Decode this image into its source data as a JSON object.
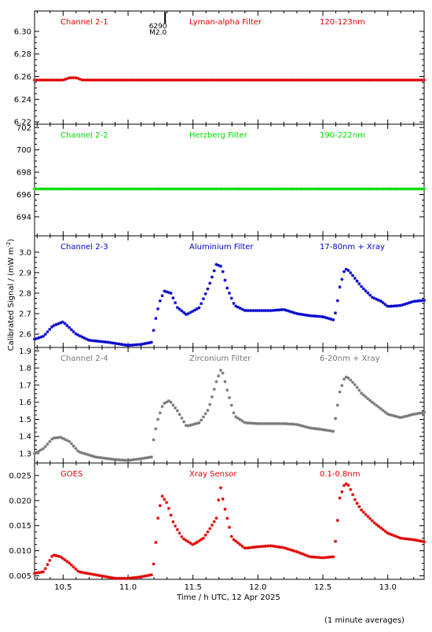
{
  "figure": {
    "ylabel": "Calibrated Signal / (mW m",
    "ylabel_sup": "-2",
    "ylabel_close": ")",
    "xlabel": "Time / h UTC, 12 Apr 2025",
    "footnote": "(1 minute averages)",
    "x_ticks": [
      10.5,
      11.0,
      11.5,
      12.0,
      12.5,
      13.0
    ],
    "x_tick_labels": [
      "10.5",
      "11.0",
      "11.5",
      "12.0",
      "12.5",
      "13.0"
    ]
  },
  "chart_data": [
    {
      "type": "scatter",
      "channel": "Channel 2-1",
      "filter": "Lyman-alpha Filter",
      "band": "120-123nm",
      "color": "#e00000",
      "xlim": [
        10.28,
        13.28
      ],
      "ylim": [
        6.218,
        6.318
      ],
      "y_ticks": [
        6.22,
        6.24,
        6.26,
        6.28,
        6.3
      ],
      "y_tick_labels": [
        "6.22",
        "6.24",
        "6.26",
        "6.28",
        "6.30"
      ],
      "annotation": {
        "x": 11.285,
        "lines": [
          "6290",
          "M2.0"
        ]
      },
      "x": [
        10.28,
        10.5,
        10.55,
        10.6,
        10.65,
        11.0,
        12.0,
        13.28
      ],
      "y": [
        6.257,
        6.257,
        6.259,
        6.259,
        6.257,
        6.257,
        6.257,
        6.257
      ]
    },
    {
      "type": "scatter",
      "channel": "Channel 2-2",
      "filter": "Herzberg Filter",
      "band": "190-222nm",
      "color": "#00dd00",
      "xlim": [
        10.28,
        13.28
      ],
      "ylim": [
        692.3,
        702.3
      ],
      "y_ticks": [
        694,
        696,
        698,
        700,
        702
      ],
      "y_tick_labels": [
        "694",
        "696",
        "698",
        "700",
        "702"
      ],
      "x": [
        10.28,
        11.0,
        12.0,
        13.28
      ],
      "y": [
        696.5,
        696.5,
        696.5,
        696.5
      ]
    },
    {
      "type": "scatter",
      "channel": "Channel 2-3",
      "filter": "Aluminium Filter",
      "band": "17-80nm + Xray",
      "color": "#0000cc",
      "xlim": [
        10.28,
        13.28
      ],
      "ylim": [
        2.535,
        3.08
      ],
      "y_ticks": [
        2.6,
        2.7,
        2.8,
        2.9,
        3.0
      ],
      "y_tick_labels": [
        "2.6",
        "2.7",
        "2.8",
        "2.9",
        "3.0"
      ],
      "x": [
        10.28,
        10.35,
        10.42,
        10.5,
        10.6,
        10.7,
        10.85,
        11.0,
        11.1,
        11.18,
        11.2,
        11.22,
        11.25,
        11.28,
        11.33,
        11.38,
        11.45,
        11.55,
        11.62,
        11.68,
        11.72,
        11.76,
        11.82,
        11.9,
        12.0,
        12.1,
        12.2,
        12.3,
        12.4,
        12.5,
        12.58,
        12.6,
        12.63,
        12.67,
        12.7,
        12.75,
        12.8,
        12.88,
        12.95,
        13.0,
        13.1,
        13.2,
        13.28
      ],
      "y": [
        2.575,
        2.59,
        2.64,
        2.66,
        2.6,
        2.57,
        2.56,
        2.545,
        2.55,
        2.56,
        2.63,
        2.7,
        2.77,
        2.81,
        2.8,
        2.73,
        2.695,
        2.73,
        2.83,
        2.94,
        2.93,
        2.83,
        2.74,
        2.715,
        2.715,
        2.715,
        2.72,
        2.7,
        2.69,
        2.685,
        2.67,
        2.71,
        2.83,
        2.92,
        2.91,
        2.87,
        2.83,
        2.78,
        2.76,
        2.735,
        2.74,
        2.76,
        2.765
      ]
    },
    {
      "type": "scatter",
      "channel": "Channel 2-4",
      "filter": "Zirconium Filter",
      "band": "6-20nm + Xray",
      "color": "#777777",
      "xlim": [
        10.28,
        13.28
      ],
      "ylim": [
        1.245,
        1.92
      ],
      "y_ticks": [
        1.3,
        1.4,
        1.5,
        1.6,
        1.7,
        1.8,
        1.9
      ],
      "y_tick_labels": [
        "1.3",
        "1.4",
        "1.5",
        "1.6",
        "1.7",
        "1.8",
        "1.9"
      ],
      "x": [
        10.28,
        10.35,
        10.42,
        10.48,
        10.55,
        10.62,
        10.75,
        10.9,
        11.0,
        11.1,
        11.18,
        11.2,
        11.23,
        11.27,
        11.32,
        11.38,
        11.45,
        11.55,
        11.62,
        11.68,
        11.72,
        11.76,
        11.82,
        11.9,
        12.0,
        12.1,
        12.2,
        12.3,
        12.4,
        12.5,
        12.58,
        12.6,
        12.63,
        12.67,
        12.7,
        12.75,
        12.8,
        12.88,
        12.95,
        13.0,
        13.1,
        13.2,
        13.28
      ],
      "y": [
        1.3,
        1.33,
        1.39,
        1.395,
        1.37,
        1.31,
        1.28,
        1.265,
        1.26,
        1.27,
        1.28,
        1.4,
        1.5,
        1.59,
        1.61,
        1.55,
        1.46,
        1.48,
        1.56,
        1.72,
        1.8,
        1.68,
        1.52,
        1.48,
        1.475,
        1.475,
        1.475,
        1.47,
        1.45,
        1.44,
        1.43,
        1.52,
        1.66,
        1.75,
        1.74,
        1.7,
        1.65,
        1.6,
        1.56,
        1.53,
        1.51,
        1.53,
        1.54
      ]
    },
    {
      "type": "scatter",
      "channel": "GOES",
      "filter": "Xray Sensor",
      "band": "0.1-0.8nm",
      "color": "#e00000",
      "xlim": [
        10.28,
        13.28
      ],
      "ylim": [
        0.0043,
        0.0275
      ],
      "y_ticks": [
        0.005,
        0.01,
        0.015,
        0.02,
        0.025
      ],
      "y_tick_labels": [
        "0.005",
        "0.010",
        "0.015",
        "0.020",
        "0.025"
      ],
      "x": [
        10.28,
        10.35,
        10.42,
        10.48,
        10.55,
        10.62,
        10.75,
        10.9,
        11.0,
        11.1,
        11.18,
        11.2,
        11.23,
        11.26,
        11.3,
        11.35,
        11.42,
        11.5,
        11.58,
        11.62,
        11.68,
        11.71,
        11.74,
        11.8,
        11.9,
        12.0,
        12.1,
        12.2,
        12.3,
        12.4,
        12.5,
        12.58,
        12.6,
        12.63,
        12.67,
        12.7,
        12.75,
        12.8,
        12.9,
        13.0,
        13.1,
        13.2,
        13.28
      ],
      "y": [
        0.0055,
        0.0058,
        0.0092,
        0.0088,
        0.0075,
        0.0058,
        0.0052,
        0.0045,
        0.0045,
        0.0048,
        0.0052,
        0.0078,
        0.0165,
        0.021,
        0.0195,
        0.0155,
        0.0125,
        0.0112,
        0.0125,
        0.014,
        0.0165,
        0.023,
        0.019,
        0.0125,
        0.0105,
        0.0108,
        0.011,
        0.0106,
        0.0098,
        0.0088,
        0.0086,
        0.0088,
        0.0125,
        0.0205,
        0.0235,
        0.023,
        0.02,
        0.018,
        0.0155,
        0.0135,
        0.0125,
        0.0122,
        0.0118
      ]
    }
  ]
}
